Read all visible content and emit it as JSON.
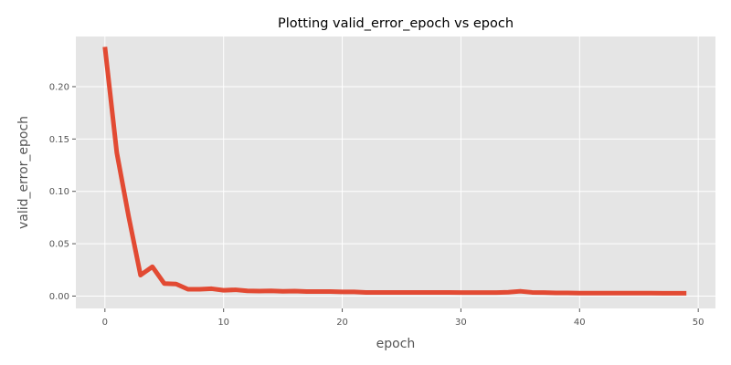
{
  "chart_data": {
    "type": "line",
    "title": "Plotting valid_error_epoch vs epoch",
    "xlabel": "epoch",
    "ylabel": "valid_error_epoch",
    "xlim": [
      -2.45,
      51.45
    ],
    "ylim": [
      -0.0118,
      0.2479
    ],
    "xticks": [
      0,
      10,
      20,
      30,
      40,
      50
    ],
    "xtick_labels": [
      "0",
      "10",
      "20",
      "30",
      "40",
      "50"
    ],
    "yticks": [
      0.0,
      0.05,
      0.1,
      0.15,
      0.2
    ],
    "ytick_labels": [
      "0.00",
      "0.05",
      "0.10",
      "0.15",
      "0.20"
    ],
    "grid": true,
    "series": [
      {
        "name": "valid_error_epoch",
        "color": "#E24A33",
        "x": [
          0,
          1,
          2,
          3,
          4,
          5,
          6,
          7,
          8,
          9,
          10,
          11,
          12,
          13,
          14,
          15,
          16,
          17,
          18,
          19,
          20,
          21,
          22,
          23,
          24,
          25,
          26,
          27,
          28,
          29,
          30,
          31,
          32,
          33,
          34,
          35,
          36,
          37,
          38,
          39,
          40,
          41,
          42,
          43,
          44,
          45,
          46,
          47,
          48,
          49
        ],
        "values": [
          0.238,
          0.137,
          0.076,
          0.02,
          0.028,
          0.012,
          0.0115,
          0.0065,
          0.0065,
          0.007,
          0.0055,
          0.006,
          0.005,
          0.0048,
          0.005,
          0.0045,
          0.0048,
          0.0043,
          0.0043,
          0.0043,
          0.004,
          0.004,
          0.0035,
          0.0035,
          0.0035,
          0.0035,
          0.0035,
          0.0035,
          0.0034,
          0.0034,
          0.0033,
          0.0033,
          0.0033,
          0.0033,
          0.0037,
          0.0046,
          0.0035,
          0.0033,
          0.003,
          0.003,
          0.0028,
          0.0028,
          0.0028,
          0.0028,
          0.0028,
          0.0028,
          0.0028,
          0.0027,
          0.0027,
          0.0027
        ]
      }
    ]
  },
  "colors": {
    "plot_background": "#E5E5E5",
    "grid": "#FFFFFF",
    "tick_mark": "#555555"
  }
}
